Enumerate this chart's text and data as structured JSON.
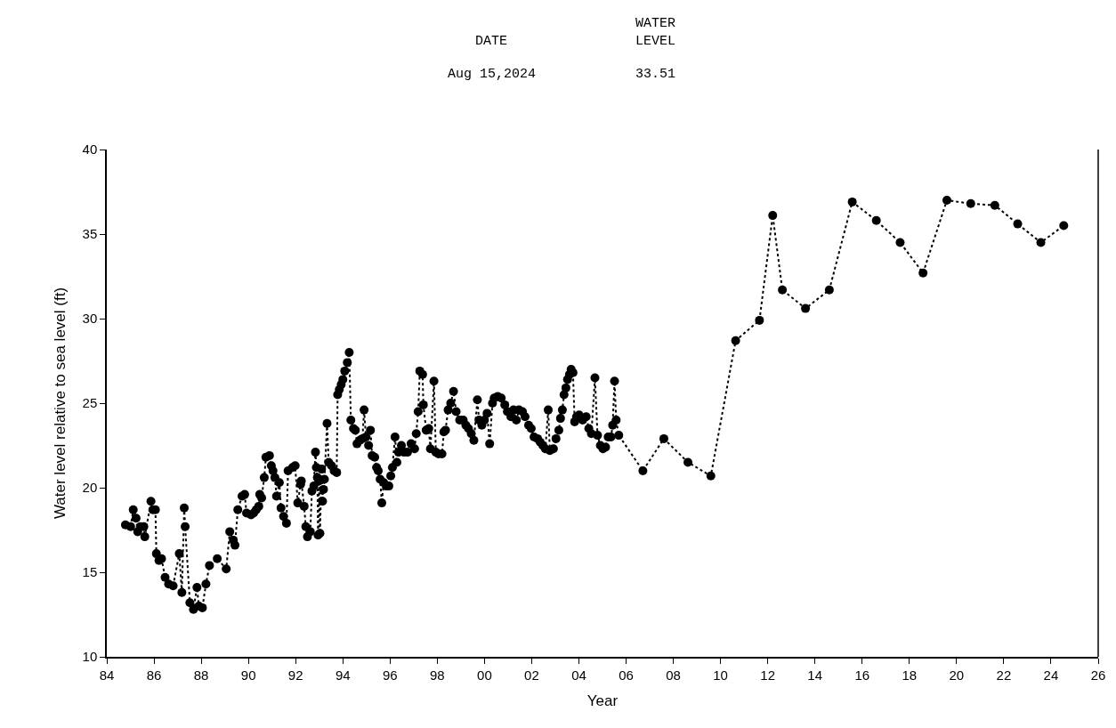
{
  "chart_data": {
    "type": "line",
    "xlabel": "Year",
    "ylabel": "Water level relative to sea level (ft)",
    "annotations": [
      "DATE",
      "WATER\nLEVEL",
      "Aug 15,2024",
      "33.51"
    ],
    "x": [
      1984.79,
      1985.01,
      1985.12,
      1985.24,
      1985.31,
      1985.42,
      1985.57,
      1985.61,
      1985.87,
      1985.95,
      1986.06,
      1986.1,
      1986.21,
      1986.32,
      1986.47,
      1986.62,
      1986.81,
      1987.07,
      1987.18,
      1987.28,
      1987.32,
      1987.52,
      1987.67,
      1987.82,
      1987.9,
      1988.05,
      1988.2,
      1988.35,
      1988.68,
      1989.06,
      1989.21,
      1989.36,
      1989.43,
      1989.55,
      1989.73,
      1989.84,
      1989.92,
      1990.11,
      1990.22,
      1990.33,
      1990.44,
      1990.48,
      1990.56,
      1990.67,
      1990.74,
      1990.89,
      1990.97,
      1991.04,
      1991.12,
      1991.19,
      1991.31,
      1991.38,
      1991.49,
      1991.61,
      1991.68,
      1991.87,
      1991.98,
      1992.09,
      1992.21,
      1992.24,
      1992.36,
      1992.43,
      1992.5,
      1992.62,
      1992.69,
      1992.77,
      1992.84,
      1992.88,
      1992.92,
      1992.95,
      1992.99,
      1993.03,
      1993.1,
      1993.14,
      1993.18,
      1993.22,
      1993.33,
      1993.4,
      1993.52,
      1993.63,
      1993.74,
      1993.78,
      1993.85,
      1993.93,
      1994.0,
      1994.08,
      1994.19,
      1994.27,
      1994.34,
      1994.45,
      1994.53,
      1994.6,
      1994.72,
      1994.83,
      1994.9,
      1994.98,
      1995.09,
      1995.17,
      1995.24,
      1995.35,
      1995.43,
      1995.5,
      1995.58,
      1995.65,
      1995.73,
      1995.84,
      1995.95,
      1996.03,
      1996.1,
      1996.21,
      1996.29,
      1996.36,
      1996.48,
      1996.59,
      1996.74,
      1996.89,
      1997.04,
      1997.11,
      1997.19,
      1997.26,
      1997.38,
      1997.41,
      1997.53,
      1997.64,
      1997.71,
      1997.86,
      1997.94,
      1998.05,
      1998.2,
      1998.28,
      1998.35,
      1998.46,
      1998.57,
      1998.69,
      1998.8,
      1998.95,
      1999.1,
      1999.21,
      1999.32,
      1999.44,
      1999.55,
      1999.7,
      1999.77,
      1999.89,
      2000.0,
      2000.11,
      2000.22,
      2000.34,
      2000.41,
      2000.56,
      2000.71,
      2000.86,
      2000.97,
      2001.12,
      2001.23,
      2001.35,
      2001.46,
      2001.61,
      2001.72,
      2001.87,
      2001.98,
      2002.1,
      2002.25,
      2002.36,
      2002.47,
      2002.58,
      2002.7,
      2002.77,
      2002.92,
      2003.03,
      2003.15,
      2003.22,
      2003.3,
      2003.37,
      2003.45,
      2003.52,
      2003.6,
      2003.67,
      2003.75,
      2003.82,
      2003.9,
      2004.01,
      2004.16,
      2004.31,
      2004.42,
      2004.53,
      2004.68,
      2004.79,
      2004.91,
      2005.02,
      2005.13,
      2005.24,
      2005.36,
      2005.43,
      2005.51,
      2005.58,
      2005.69,
      2006.71,
      2007.6,
      2008.62,
      2009.59,
      2010.64,
      2011.65,
      2012.21,
      2012.62,
      2013.6,
      2014.61,
      2015.58,
      2016.6,
      2017.61,
      2018.58,
      2019.59,
      2020.6,
      2021.62,
      2022.59,
      2023.57,
      2024.54
    ],
    "series": [
      {
        "color": "#000000",
        "values": [
          17.8,
          17.7,
          18.7,
          18.2,
          17.4,
          17.7,
          17.7,
          17.1,
          19.2,
          18.7,
          18.7,
          16.1,
          15.7,
          15.8,
          14.7,
          14.3,
          14.2,
          16.1,
          13.8,
          18.8,
          17.7,
          13.2,
          12.8,
          14.1,
          13.0,
          12.9,
          14.3,
          15.4,
          15.8,
          15.2,
          17.4,
          16.9,
          16.6,
          18.7,
          19.5,
          19.6,
          18.5,
          18.4,
          18.5,
          18.7,
          18.9,
          19.6,
          19.4,
          20.6,
          21.8,
          21.9,
          21.3,
          21.0,
          20.6,
          19.5,
          20.3,
          18.8,
          18.3,
          17.9,
          21.0,
          21.2,
          21.3,
          19.1,
          20.2,
          20.4,
          18.9,
          17.7,
          17.1,
          17.4,
          19.8,
          20.1,
          22.1,
          21.2,
          20.6,
          17.2,
          20.4,
          17.3,
          21.1,
          19.2,
          19.9,
          20.5,
          23.8,
          21.5,
          21.3,
          21.0,
          20.9,
          25.5,
          25.8,
          26.1,
          26.4,
          26.9,
          27.4,
          28.0,
          24.0,
          23.5,
          23.4,
          22.6,
          22.8,
          22.9,
          24.6,
          23.0,
          22.5,
          23.4,
          21.9,
          21.8,
          21.2,
          21.0,
          20.5,
          19.1,
          20.3,
          20.1,
          20.1,
          20.7,
          21.2,
          23.0,
          21.5,
          22.1,
          22.5,
          22.1,
          22.1,
          22.6,
          22.3,
          23.2,
          24.5,
          26.9,
          26.7,
          24.9,
          23.4,
          23.5,
          22.3,
          26.3,
          22.1,
          22.0,
          22.0,
          23.3,
          23.4,
          24.6,
          25.0,
          25.7,
          24.5,
          24.0,
          24.0,
          23.7,
          23.5,
          23.2,
          22.8,
          25.2,
          24.0,
          23.7,
          24.0,
          24.4,
          22.6,
          25.0,
          25.3,
          25.4,
          25.3,
          24.9,
          24.5,
          24.2,
          24.6,
          24.0,
          24.6,
          24.5,
          24.2,
          23.7,
          23.5,
          23.0,
          22.9,
          22.7,
          22.5,
          22.3,
          24.6,
          22.2,
          22.3,
          22.9,
          23.4,
          24.1,
          24.6,
          25.5,
          25.9,
          26.4,
          26.7,
          27.0,
          26.8,
          23.9,
          24.2,
          24.3,
          24.0,
          24.2,
          23.5,
          23.2,
          26.5,
          23.1,
          22.5,
          22.3,
          22.4,
          23.0,
          23.0,
          23.7,
          26.3,
          24.0,
          23.1,
          21.0,
          22.9,
          21.5,
          20.7,
          28.7,
          29.9,
          36.1,
          31.7,
          30.6,
          31.7,
          36.9,
          35.8,
          34.5,
          32.7,
          37.0,
          36.8,
          36.7,
          35.6,
          34.5,
          35.5
        ]
      }
    ],
    "xlim": [
      1984,
      2026
    ],
    "xticks": [
      {
        "value": 1984,
        "label": "84"
      },
      {
        "value": 1986,
        "label": "86"
      },
      {
        "value": 1988,
        "label": "88"
      },
      {
        "value": 1990,
        "label": "90"
      },
      {
        "value": 1992,
        "label": "92"
      },
      {
        "value": 1994,
        "label": "94"
      },
      {
        "value": 1996,
        "label": "96"
      },
      {
        "value": 1998,
        "label": "98"
      },
      {
        "value": 2000,
        "label": "00"
      },
      {
        "value": 2002,
        "label": "02"
      },
      {
        "value": 2004,
        "label": "04"
      },
      {
        "value": 2006,
        "label": "06"
      },
      {
        "value": 2008,
        "label": "08"
      },
      {
        "value": 2010,
        "label": "10"
      },
      {
        "value": 2012,
        "label": "12"
      },
      {
        "value": 2014,
        "label": "14"
      },
      {
        "value": 2016,
        "label": "16"
      },
      {
        "value": 2018,
        "label": "18"
      },
      {
        "value": 2020,
        "label": "20"
      },
      {
        "value": 2022,
        "label": "22"
      },
      {
        "value": 2024,
        "label": "24"
      },
      {
        "value": 2026,
        "label": "26"
      }
    ],
    "ylim": [
      10,
      40
    ],
    "yticks": [
      10,
      15,
      20,
      25,
      30,
      35,
      40
    ],
    "marker": "circle",
    "line_style": "dotted"
  }
}
